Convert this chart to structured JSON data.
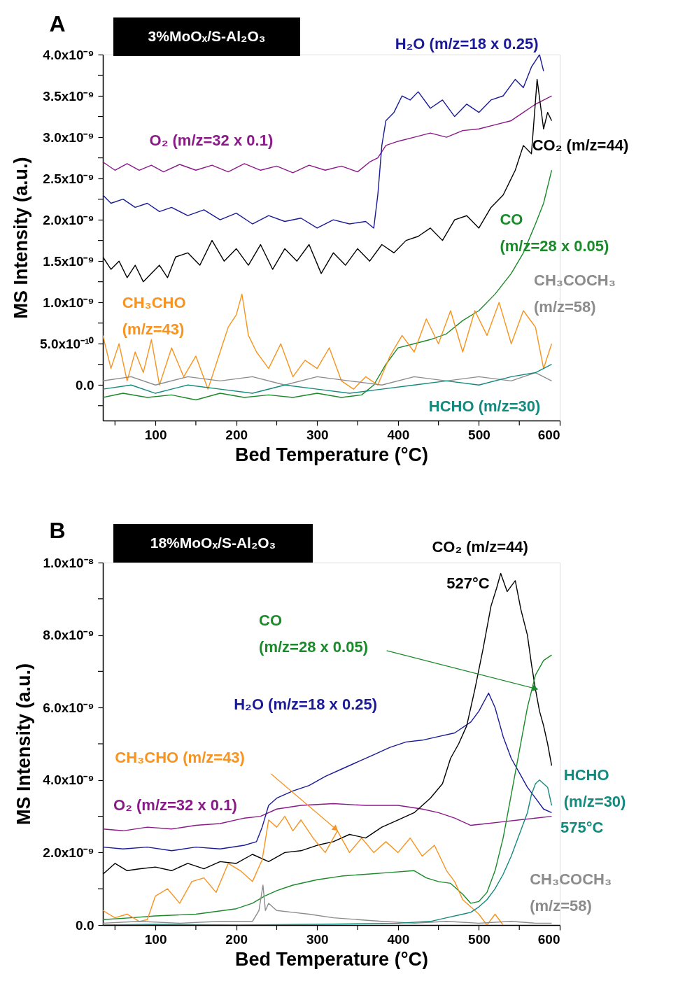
{
  "chart_data": [
    {
      "type": "line",
      "title": "A",
      "subtitle": "3%MoOₓ/S-Al₂O₃",
      "xlabel": "Bed Temperature (°C)",
      "ylabel": "MS Intensity (a.u.)",
      "grid": false,
      "legend": false,
      "xlim": [
        35,
        600
      ],
      "ylim": [
        -4.3e-10,
        4e-09
      ],
      "xticks": [
        {
          "value": 50,
          "label": null
        },
        100,
        {
          "value": 150,
          "label": null
        },
        200,
        {
          "value": 250,
          "label": null
        },
        300,
        {
          "value": 350,
          "label": null
        },
        400,
        {
          "value": 450,
          "label": null
        },
        500,
        {
          "value": 550,
          "label": null
        },
        600
      ],
      "yticks": [
        {
          "value": -2.5e-10,
          "label": null
        },
        {
          "value": 0,
          "label": "0.0"
        },
        {
          "value": 2.5e-10,
          "label": null
        },
        {
          "value": 5e-10,
          "label": "5.0x10⁻¹⁰"
        },
        {
          "value": 7.5e-10,
          "label": null
        },
        {
          "value": 1e-09,
          "label": "1.0x10⁻⁹"
        },
        {
          "value": 1.25e-09,
          "label": null
        },
        {
          "value": 1.5e-09,
          "label": "1.5x10⁻⁹"
        },
        {
          "value": 1.75e-09,
          "label": null
        },
        {
          "value": 2e-09,
          "label": "2.0x10⁻⁹"
        },
        {
          "value": 2.25e-09,
          "label": null
        },
        {
          "value": 2.5e-09,
          "label": "2.5x10⁻⁹"
        },
        {
          "value": 2.75e-09,
          "label": null
        },
        {
          "value": 3e-09,
          "label": "3.0x10⁻⁹"
        },
        {
          "value": 3.25e-09,
          "label": null
        },
        {
          "value": 3.5e-09,
          "label": "3.5x10⁻⁹"
        },
        {
          "value": 3.75e-09,
          "label": null
        },
        {
          "value": 4e-09,
          "label": "4.0x10⁻⁹"
        }
      ],
      "series": [
        {
          "name": "O₂ (m/z=32 x 0.1)",
          "color": "#8b1a89",
          "x": [
            35,
            50,
            65,
            80,
            95,
            110,
            130,
            150,
            170,
            190,
            210,
            230,
            250,
            270,
            290,
            310,
            330,
            350,
            365,
            375,
            385,
            400,
            420,
            440,
            460,
            480,
            500,
            520,
            540,
            555,
            570,
            590
          ],
          "values": [
            2.7e-09,
            2.6e-09,
            2.68e-09,
            2.6e-09,
            2.66e-09,
            2.58e-09,
            2.67e-09,
            2.6e-09,
            2.66e-09,
            2.58e-09,
            2.68e-09,
            2.6e-09,
            2.65e-09,
            2.57e-09,
            2.66e-09,
            2.6e-09,
            2.65e-09,
            2.58e-09,
            2.7e-09,
            2.75e-09,
            2.9e-09,
            2.95e-09,
            3e-09,
            3.05e-09,
            3e-09,
            3.08e-09,
            3.1e-09,
            3.15e-09,
            3.2e-09,
            3.3e-09,
            3.4e-09,
            3.5e-09
          ]
        },
        {
          "name": "H₂O (m/z=18 x 0.25)",
          "color": "#1a1a99",
          "x": [
            35,
            45,
            60,
            75,
            90,
            105,
            120,
            140,
            160,
            180,
            200,
            220,
            240,
            260,
            280,
            300,
            320,
            340,
            360,
            370,
            375,
            380,
            385,
            395,
            405,
            415,
            425,
            440,
            455,
            470,
            485,
            500,
            515,
            530,
            545,
            555,
            565,
            575,
            580
          ],
          "values": [
            2.3e-09,
            2.2e-09,
            2.25e-09,
            2.15e-09,
            2.2e-09,
            2.1e-09,
            2.15e-09,
            2.05e-09,
            2.12e-09,
            2e-09,
            2.08e-09,
            1.95e-09,
            2.05e-09,
            1.98e-09,
            2.02e-09,
            1.9e-09,
            2e-09,
            1.95e-09,
            1.98e-09,
            1.9e-09,
            2.3e-09,
            2.9e-09,
            3.2e-09,
            3.3e-09,
            3.5e-09,
            3.45e-09,
            3.55e-09,
            3.35e-09,
            3.45e-09,
            3.25e-09,
            3.4e-09,
            3.3e-09,
            3.45e-09,
            3.5e-09,
            3.7e-09,
            3.6e-09,
            3.85e-09,
            4e-09,
            3.8e-09
          ]
        },
        {
          "name": "CO₂ (m/z=44)",
          "color": "#000000",
          "x": [
            35,
            45,
            55,
            65,
            75,
            85,
            95,
            105,
            115,
            125,
            140,
            155,
            170,
            185,
            200,
            215,
            230,
            245,
            260,
            275,
            290,
            305,
            320,
            335,
            350,
            365,
            380,
            395,
            410,
            425,
            440,
            455,
            470,
            485,
            500,
            515,
            530,
            545,
            555,
            565,
            572,
            580,
            585,
            590
          ],
          "values": [
            1.55e-09,
            1.4e-09,
            1.5e-09,
            1.3e-09,
            1.45e-09,
            1.25e-09,
            1.35e-09,
            1.45e-09,
            1.3e-09,
            1.55e-09,
            1.6e-09,
            1.45e-09,
            1.75e-09,
            1.5e-09,
            1.65e-09,
            1.45e-09,
            1.7e-09,
            1.4e-09,
            1.65e-09,
            1.5e-09,
            1.7e-09,
            1.35e-09,
            1.6e-09,
            1.45e-09,
            1.65e-09,
            1.5e-09,
            1.7e-09,
            1.6e-09,
            1.75e-09,
            1.8e-09,
            1.9e-09,
            1.75e-09,
            2e-09,
            2.05e-09,
            1.9e-09,
            2.15e-09,
            2.3e-09,
            2.6e-09,
            2.9e-09,
            2.8e-09,
            3.7e-09,
            3.1e-09,
            3.3e-09,
            3.2e-09
          ]
        },
        {
          "name": "CO (m/z=28 x 0.05)",
          "color": "#1a8a2a",
          "x": [
            35,
            60,
            90,
            120,
            150,
            180,
            210,
            240,
            270,
            300,
            330,
            355,
            370,
            385,
            400,
            420,
            440,
            460,
            480,
            500,
            520,
            540,
            555,
            570,
            580,
            590
          ],
          "values": [
            -1.5e-10,
            -1e-10,
            -1.5e-10,
            -1.2e-10,
            -1.8e-10,
            -1e-10,
            -1.5e-10,
            -1.2e-10,
            -1.5e-10,
            -1e-10,
            -1.5e-10,
            -1.2e-10,
            0.0,
            2.5e-10,
            4.5e-10,
            5e-10,
            5.5e-10,
            6.2e-10,
            7.8e-10,
            9e-10,
            1.1e-09,
            1.35e-09,
            1.6e-09,
            1.95e-09,
            2.2e-09,
            2.6e-09
          ]
        },
        {
          "name": "CH₃CHO (m/z=43)",
          "color": "#f7931e",
          "x": [
            35,
            45,
            55,
            65,
            75,
            85,
            95,
            105,
            120,
            135,
            150,
            165,
            180,
            190,
            200,
            207,
            215,
            225,
            240,
            255,
            270,
            285,
            300,
            315,
            330,
            345,
            360,
            375,
            390,
            405,
            420,
            435,
            450,
            465,
            480,
            495,
            510,
            525,
            540,
            555,
            570,
            580,
            590
          ],
          "values": [
            6e-10,
            2e-10,
            5e-10,
            5e-11,
            4e-10,
            1.5e-10,
            5.5e-10,
            0.0,
            4.5e-10,
            1e-10,
            3.5e-10,
            -5e-11,
            4e-10,
            7e-10,
            8.5e-10,
            1.1e-09,
            6e-10,
            4e-10,
            2e-10,
            5e-10,
            1e-10,
            3e-10,
            2e-10,
            4.5e-10,
            5e-11,
            -5e-11,
            1e-10,
            0.0,
            3.5e-10,
            6e-10,
            4e-10,
            8e-10,
            5e-10,
            9e-10,
            4e-10,
            9e-10,
            6e-10,
            1e-09,
            5e-10,
            9e-10,
            7e-10,
            2e-10,
            5e-10
          ]
        },
        {
          "name": "CH₃COCH₃ (m/z=58)",
          "color": "#8c8c8c",
          "x": [
            35,
            70,
            100,
            140,
            180,
            220,
            260,
            300,
            340,
            380,
            420,
            460,
            500,
            540,
            570,
            590
          ],
          "values": [
            5e-11,
            1e-10,
            0.0,
            1e-10,
            5e-11,
            1e-10,
            0.0,
            1e-10,
            5e-11,
            0.0,
            1e-10,
            5e-11,
            1e-10,
            5e-11,
            1.5e-10,
            5e-11
          ]
        },
        {
          "name": "HCHO (m/z=30)",
          "color": "#138a7e",
          "x": [
            35,
            70,
            100,
            140,
            180,
            220,
            260,
            300,
            340,
            380,
            420,
            460,
            500,
            540,
            570,
            590
          ],
          "values": [
            -5e-11,
            0.0,
            -1e-10,
            0.0,
            -5e-11,
            -1e-10,
            0.0,
            -5e-11,
            -1e-10,
            -5e-11,
            0.0,
            5e-11,
            0.0,
            1e-10,
            1.5e-10,
            2.5e-10
          ]
        }
      ]
    },
    {
      "type": "line",
      "title": "B",
      "subtitle": "18%MoOₓ/S-Al₂O₃",
      "xlabel": "Bed Temperature (°C)",
      "ylabel": "MS Intensity (a.u.)",
      "grid": false,
      "legend": false,
      "xlim": [
        35,
        600
      ],
      "ylim": [
        0,
        1e-08
      ],
      "xticks": [
        {
          "value": 50,
          "label": null
        },
        100,
        {
          "value": 150,
          "label": null
        },
        200,
        {
          "value": 250,
          "label": null
        },
        300,
        {
          "value": 350,
          "label": null
        },
        400,
        {
          "value": 450,
          "label": null
        },
        500,
        {
          "value": 550,
          "label": null
        },
        600
      ],
      "yticks": [
        {
          "value": 0,
          "label": "0.0"
        },
        {
          "value": 1e-09,
          "label": null
        },
        {
          "value": 2e-09,
          "label": "2.0x10⁻⁹"
        },
        {
          "value": 3e-09,
          "label": null
        },
        {
          "value": 4e-09,
          "label": "4.0x10⁻⁹"
        },
        {
          "value": 5e-09,
          "label": null
        },
        {
          "value": 6e-09,
          "label": "6.0x10⁻⁹"
        },
        {
          "value": 7e-09,
          "label": null
        },
        {
          "value": 8e-09,
          "label": "8.0x10⁻⁹"
        },
        {
          "value": 9e-09,
          "label": null
        },
        {
          "value": 1e-08,
          "label": "1.0x10⁻⁸"
        }
      ],
      "annotations": [
        {
          "text": "527°C",
          "x": 527,
          "y": 9.7e-09
        },
        {
          "text": "575°C",
          "x": 575,
          "y": 4e-09
        }
      ],
      "series": [
        {
          "name": "O₂ (m/z=32 x 0.1)",
          "color": "#8b1a89",
          "x": [
            35,
            60,
            90,
            120,
            150,
            180,
            210,
            230,
            250,
            280,
            320,
            360,
            400,
            430,
            450,
            470,
            490,
            510,
            530,
            550,
            570,
            590
          ],
          "values": [
            2.65e-09,
            2.6e-09,
            2.7e-09,
            2.65e-09,
            2.75e-09,
            2.8e-09,
            2.95e-09,
            3e-09,
            3.2e-09,
            3.3e-09,
            3.35e-09,
            3.3e-09,
            3.3e-09,
            3.2e-09,
            3.1e-09,
            2.95e-09,
            2.75e-09,
            2.8e-09,
            2.85e-09,
            2.9e-09,
            2.95e-09,
            3e-09
          ]
        },
        {
          "name": "H₂O (m/z=18 x 0.25)",
          "color": "#1a1a99",
          "x": [
            35,
            60,
            90,
            120,
            150,
            180,
            210,
            225,
            232,
            240,
            250,
            270,
            290,
            310,
            330,
            350,
            370,
            390,
            410,
            430,
            450,
            470,
            490,
            500,
            512,
            520,
            530,
            540,
            550,
            560,
            570,
            580,
            590
          ],
          "values": [
            2.15e-09,
            2.1e-09,
            2.15e-09,
            2.05e-09,
            2.15e-09,
            2.1e-09,
            2.2e-09,
            2.3e-09,
            2.7e-09,
            3.3e-09,
            3.5e-09,
            3.7e-09,
            3.85e-09,
            4.1e-09,
            4.3e-09,
            4.5e-09,
            4.7e-09,
            4.9e-09,
            5.05e-09,
            5.1e-09,
            5.2e-09,
            5.3e-09,
            5.6e-09,
            5.9e-09,
            6.4e-09,
            6e-09,
            5.2e-09,
            4.6e-09,
            4.2e-09,
            3.8e-09,
            3.5e-09,
            3.2e-09,
            3.1e-09
          ]
        },
        {
          "name": "CO₂ (m/z=44)",
          "color": "#000000",
          "x": [
            35,
            50,
            65,
            80,
            100,
            120,
            140,
            160,
            180,
            200,
            220,
            240,
            260,
            280,
            300,
            320,
            340,
            360,
            380,
            400,
            420,
            440,
            455,
            465,
            475,
            485,
            495,
            505,
            515,
            522,
            527,
            535,
            545,
            552,
            560,
            565,
            570,
            575,
            580,
            585,
            590
          ],
          "values": [
            1.4e-09,
            1.7e-09,
            1.5e-09,
            1.55e-09,
            1.6e-09,
            1.5e-09,
            1.7e-09,
            1.55e-09,
            1.75e-09,
            1.7e-09,
            1.95e-09,
            1.75e-09,
            2e-09,
            2.05e-09,
            2.2e-09,
            2.3e-09,
            2.5e-09,
            2.4e-09,
            2.7e-09,
            2.9e-09,
            3.1e-09,
            3.5e-09,
            3.9e-09,
            4.6e-09,
            5e-09,
            5.5e-09,
            6.5e-09,
            7.6e-09,
            8.8e-09,
            9.3e-09,
            9.7e-09,
            9.2e-09,
            9.5e-09,
            8.7e-09,
            8e-09,
            7.2e-09,
            6.5e-09,
            5.9e-09,
            5.5e-09,
            5e-09,
            4.4e-09
          ]
        },
        {
          "name": "CO (m/z=28 x 0.05)",
          "color": "#1a8a2a",
          "x": [
            35,
            70,
            100,
            150,
            200,
            220,
            235,
            250,
            270,
            300,
            330,
            360,
            390,
            420,
            435,
            450,
            465,
            480,
            490,
            500,
            510,
            520,
            530,
            540,
            550,
            560,
            570,
            580,
            590
          ],
          "values": [
            1.5e-10,
            2e-10,
            2.5e-10,
            3e-10,
            4.5e-10,
            6e-10,
            8e-10,
            9.5e-10,
            1.1e-09,
            1.25e-09,
            1.35e-09,
            1.4e-09,
            1.45e-09,
            1.5e-09,
            1.3e-09,
            1.2e-09,
            1.15e-09,
            8.5e-10,
            6e-10,
            6.5e-10,
            9e-10,
            1.5e-09,
            2.4e-09,
            3.6e-09,
            4.8e-09,
            6e-09,
            6.9e-09,
            7.3e-09,
            7.45e-09
          ]
        },
        {
          "name": "CH₃CHO (m/z=43)",
          "color": "#f7931e",
          "x": [
            35,
            50,
            65,
            80,
            90,
            100,
            115,
            130,
            145,
            160,
            175,
            190,
            205,
            220,
            232,
            240,
            250,
            260,
            270,
            280,
            295,
            310,
            325,
            340,
            355,
            370,
            385,
            400,
            415,
            430,
            445,
            460,
            470,
            480,
            490,
            500,
            510,
            520,
            530
          ],
          "values": [
            4e-10,
            2e-10,
            3e-10,
            1e-10,
            1.5e-10,
            8e-10,
            1e-09,
            6e-10,
            1.2e-09,
            1.3e-09,
            9e-10,
            1.7e-09,
            1.5e-09,
            1.2e-09,
            1.8e-09,
            2.9e-09,
            2.7e-09,
            3e-09,
            2.6e-09,
            2.9e-09,
            2.4e-09,
            2e-09,
            2.6e-09,
            2e-09,
            2.4e-09,
            2e-09,
            2.3e-09,
            2e-09,
            2.4e-09,
            1.9e-09,
            2.2e-09,
            1.5e-09,
            1.2e-09,
            7e-10,
            5e-10,
            3e-10,
            0.0,
            3e-10,
            0.0
          ]
        },
        {
          "name": "CH₃COCH₃ (m/z=58)",
          "color": "#8c8c8c",
          "x": [
            35,
            80,
            130,
            180,
            220,
            228,
            233,
            236,
            240,
            250,
            270,
            290,
            320,
            350,
            380,
            420,
            460,
            500,
            540,
            570,
            590
          ],
          "values": [
            5e-11,
            1e-10,
            5e-11,
            1e-10,
            1e-10,
            4e-10,
            1.1e-09,
            4e-10,
            6e-10,
            4e-10,
            3.5e-10,
            3e-10,
            2e-10,
            1.5e-10,
            1e-10,
            5e-11,
            1e-10,
            5e-11,
            1e-10,
            5e-11,
            5e-11
          ]
        },
        {
          "name": "HCHO (m/z=30)",
          "color": "#138a7e",
          "x": [
            35,
            100,
            200,
            300,
            400,
            440,
            460,
            480,
            490,
            500,
            510,
            520,
            530,
            540,
            550,
            560,
            565,
            570,
            575,
            580,
            585,
            590
          ],
          "values": [
            0.0,
            2e-11,
            0.0,
            2e-11,
            5e-11,
            1e-10,
            2e-10,
            3e-10,
            3.5e-10,
            5e-10,
            7e-10,
            1e-09,
            1.4e-09,
            1.9e-09,
            2.5e-09,
            3.1e-09,
            3.6e-09,
            3.9e-09,
            4e-09,
            3.9e-09,
            3.8e-09,
            3.3e-09
          ]
        }
      ]
    }
  ]
}
